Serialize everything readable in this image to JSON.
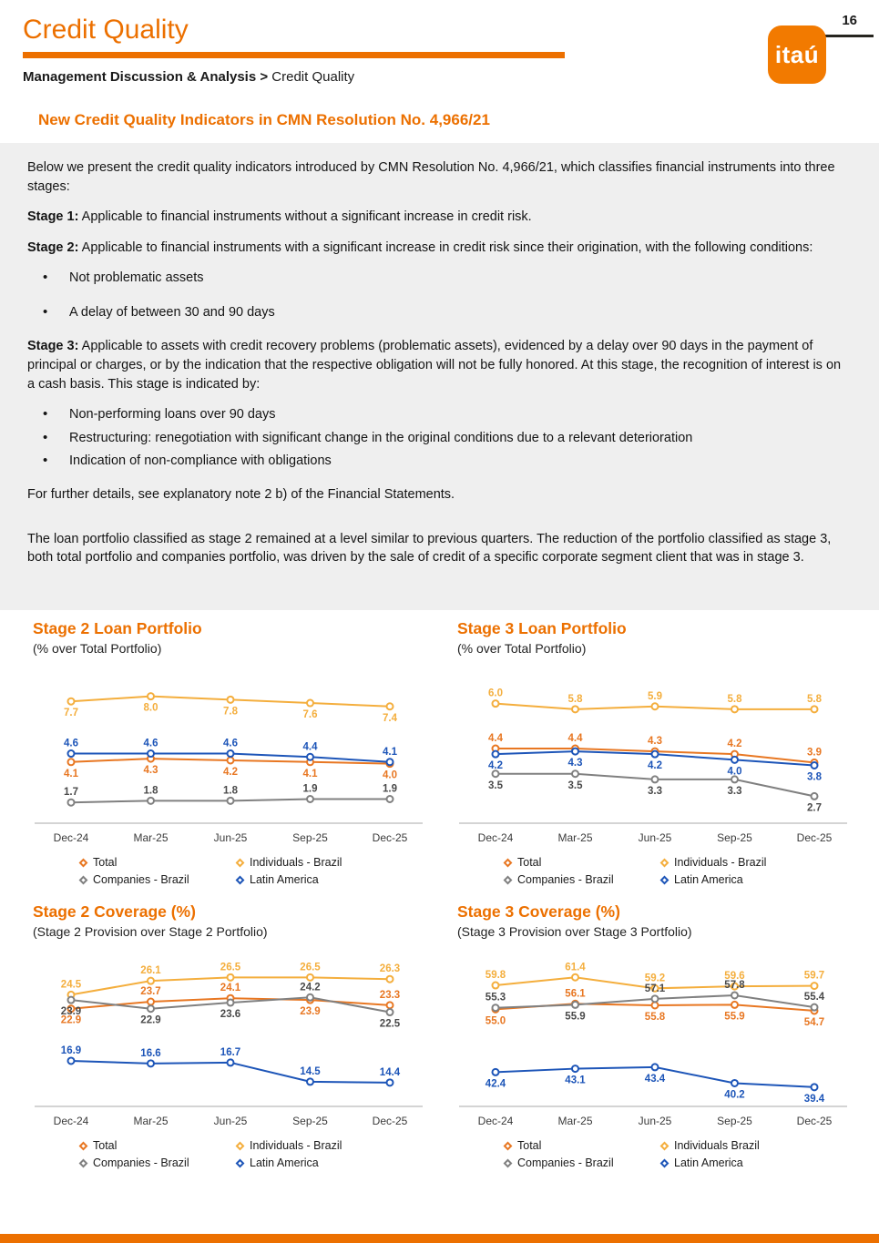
{
  "accent_color": "#EC7000",
  "box_color": "#EFEFEF",
  "header": {
    "page_number": "16",
    "title": "Credit Quality",
    "logo_text": "itaú",
    "breadcrumb_bold": "Management Discussion & Analysis >",
    "breadcrumb_rest": "Credit Quality"
  },
  "intro": {
    "heading": "New Credit Quality Indicators in CMN Resolution No. 4,966/21",
    "p1": "Below we present the credit quality indicators introduced by CMN Resolution No. 4,966/21, which classifies financial instruments into three stages:",
    "stage1_label": "Stage 1:",
    "stage1_text": "Applicable to financial instruments without a significant increase in credit risk.",
    "stage2_label": "Stage 2:",
    "stage2_text": "Applicable to financial instruments with a significant increase in credit risk since their origination, with the following conditions:",
    "stage2_bullets": [
      "Not problematic assets",
      "A delay of between 30 and 90 days"
    ],
    "stage3_label": "Stage 3:",
    "stage3_text": "Applicable to assets with credit recovery problems (problematic assets), evidenced by a delay over 90 days in the payment of principal or charges, or by the indication that the respective obligation will not be fully honored. At this stage, the recognition of interest is on a cash basis. This stage is indicated by:",
    "stage3_bullets": [
      "Non-performing loans over 90 days",
      "Restructuring: renegotiation with significant change in the original conditions due to a relevant deterioration",
      "Indication of non-compliance with obligations"
    ],
    "note": "For further details, see explanatory note 2 b) of the Financial Statements.",
    "summary": "The loan portfolio classified as stage 2 remained at a level similar to previous quarters. The reduction of the portfolio classified as stage 3, both total portfolio and companies portfolio, was driven by the sale of credit of a specific corporate segment client that was in stage 3."
  },
  "chart_data": [
    {
      "type": "line",
      "title": "Stage 2 Loan Portfolio",
      "subtitle": "(% over Total Portfolio)",
      "categories": [
        "Dec-24",
        "Mar-25",
        "Jun-25",
        "Sep-25",
        "Dec-25"
      ],
      "ylim": [
        0.9,
        8.9
      ],
      "grid": false,
      "legend_position": "bottom",
      "series": [
        {
          "name": "Total",
          "color": "#E87722",
          "values": [
            4.1,
            4.3,
            4.2,
            4.1,
            4.0
          ],
          "label_side": "below"
        },
        {
          "name": "Individuals - Brazil",
          "color": "#F4AE3D",
          "values": [
            7.7,
            8.0,
            7.8,
            7.6,
            7.4
          ],
          "label_side": "below"
        },
        {
          "name": "Companies - Brazil",
          "color": "#808080",
          "label_color": "#4a4a4a",
          "values": [
            1.7,
            1.8,
            1.8,
            1.9,
            1.9
          ],
          "label_side": "above"
        },
        {
          "name": "Latin America",
          "color": "#1D55B8",
          "values": [
            4.6,
            4.6,
            4.6,
            4.4,
            4.1
          ],
          "label_side": "above"
        }
      ]
    },
    {
      "type": "line",
      "title": "Stage 3 Loan Portfolio",
      "subtitle": "(% over Total Portfolio)",
      "categories": [
        "Dec-24",
        "Mar-25",
        "Jun-25",
        "Sep-25",
        "Dec-25"
      ],
      "ylim": [
        2.0,
        6.8
      ],
      "grid": false,
      "legend_position": "bottom",
      "series": [
        {
          "name": "Total",
          "color": "#E87722",
          "values": [
            4.4,
            4.4,
            4.3,
            4.2,
            3.9
          ],
          "label_side": "above"
        },
        {
          "name": "Individuals - Brazil",
          "color": "#F4AE3D",
          "values": [
            6.0,
            5.8,
            5.9,
            5.8,
            5.8
          ],
          "label_side": "above"
        },
        {
          "name": "Companies - Brazil",
          "color": "#808080",
          "label_color": "#4a4a4a",
          "values": [
            3.5,
            3.5,
            3.3,
            3.3,
            2.7
          ],
          "label_side": "below"
        },
        {
          "name": "Latin America",
          "color": "#1D55B8",
          "values": [
            4.2,
            4.3,
            4.2,
            4.0,
            3.8
          ],
          "label_side": "below"
        }
      ]
    },
    {
      "type": "line",
      "title": "Stage 2 Coverage (%)",
      "subtitle": "(Stage 2 Provision over Stage 2 Portfolio)",
      "categories": [
        "Dec-24",
        "Mar-25",
        "Jun-25",
        "Sep-25",
        "Dec-25"
      ],
      "ylim": [
        12.5,
        28.0
      ],
      "grid": false,
      "legend_position": "bottom",
      "series": [
        {
          "name": "Total",
          "color": "#E87722",
          "values": [
            22.9,
            23.7,
            24.1,
            23.9,
            23.3
          ],
          "label_side": [
            "below",
            "above",
            "above",
            "below",
            "above"
          ]
        },
        {
          "name": "Individuals - Brazil",
          "color": "#F4AE3D",
          "values": [
            24.5,
            26.1,
            26.5,
            26.5,
            26.3
          ],
          "label_side": "above"
        },
        {
          "name": "Companies - Brazil",
          "color": "#808080",
          "label_color": "#4a4a4a",
          "values": [
            23.9,
            22.9,
            23.6,
            24.2,
            22.5
          ],
          "label_side": [
            "below",
            "below",
            "below",
            "above",
            "below"
          ]
        },
        {
          "name": "Latin America",
          "color": "#1D55B8",
          "values": [
            16.9,
            16.6,
            16.7,
            14.5,
            14.4
          ],
          "label_side": "above"
        }
      ]
    },
    {
      "type": "line",
      "title": "Stage 3 Coverage (%)",
      "subtitle": "(Stage 3 Provision over Stage 3 Portfolio)",
      "categories": [
        "Dec-24",
        "Mar-25",
        "Jun-25",
        "Sep-25",
        "Dec-25"
      ],
      "ylim": [
        37.0,
        64.0
      ],
      "grid": false,
      "legend_position": "bottom",
      "series": [
        {
          "name": "Total",
          "color": "#E87722",
          "values": [
            55.0,
            56.1,
            55.8,
            55.9,
            54.7
          ],
          "label_side": [
            "below",
            "above",
            "below",
            "below",
            "below"
          ]
        },
        {
          "name": "Individuals Brazil",
          "color": "#F4AE3D",
          "values": [
            59.8,
            61.4,
            59.2,
            59.6,
            59.7
          ],
          "label_side": "above"
        },
        {
          "name": "Companies - Brazil",
          "color": "#808080",
          "label_color": "#4a4a4a",
          "values": [
            55.3,
            55.9,
            57.1,
            57.8,
            55.4
          ],
          "label_side": [
            "above",
            "below",
            "above",
            "above",
            "above"
          ]
        },
        {
          "name": "Latin America",
          "color": "#1D55B8",
          "values": [
            42.4,
            43.1,
            43.4,
            40.2,
            39.4
          ],
          "label_side": "below"
        }
      ]
    }
  ]
}
